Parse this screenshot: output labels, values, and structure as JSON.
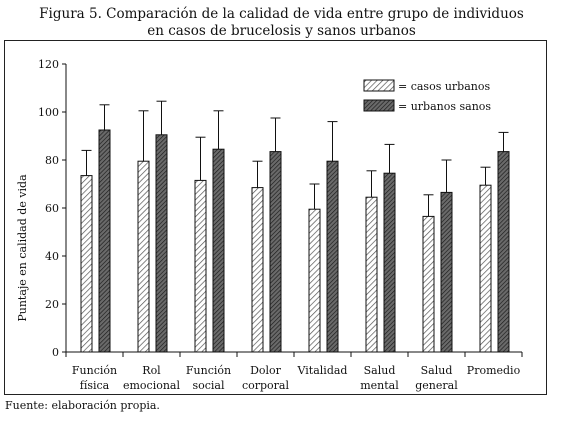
{
  "figure": {
    "title_line1": "Figura 5. Comparación de la calidad de vida entre grupo de individuos",
    "title_line2": "en casos de brucelosis y sanos urbanos",
    "source": "Fuente: elaboración propia."
  },
  "chart_data": {
    "type": "bar",
    "categories": [
      [
        "Función",
        "física"
      ],
      [
        "Rol",
        "emocional"
      ],
      [
        "Función",
        "social"
      ],
      [
        "Dolor",
        "corporal"
      ],
      [
        "Vitalidad"
      ],
      [
        "Salud",
        "mental"
      ],
      [
        "Salud",
        "general"
      ],
      [
        "Promedio"
      ]
    ],
    "series": [
      {
        "name": "= casos urbanos",
        "values": [
          73.5,
          79.5,
          71.5,
          68.5,
          59.5,
          64.5,
          56.5,
          69.5
        ],
        "error": [
          10.5,
          21,
          18,
          11,
          10.5,
          11,
          9,
          7.5
        ],
        "pattern": "hatch",
        "color": "#dddddd"
      },
      {
        "name": "= urbanos sanos",
        "values": [
          92.5,
          90.5,
          84.5,
          83.5,
          79.5,
          74.5,
          66.5,
          83.5
        ],
        "error": [
          10.5,
          14,
          16,
          14,
          16.5,
          12,
          13.5,
          8
        ],
        "pattern": "hatch-dark",
        "color": "#555555"
      }
    ],
    "xlabel": "",
    "ylabel": "Puntaje en calidad de vida",
    "ylim": [
      0,
      120
    ],
    "yticks": [
      0,
      20,
      40,
      60,
      80,
      100,
      120
    ],
    "legend_position": "top-right",
    "grid": false
  }
}
